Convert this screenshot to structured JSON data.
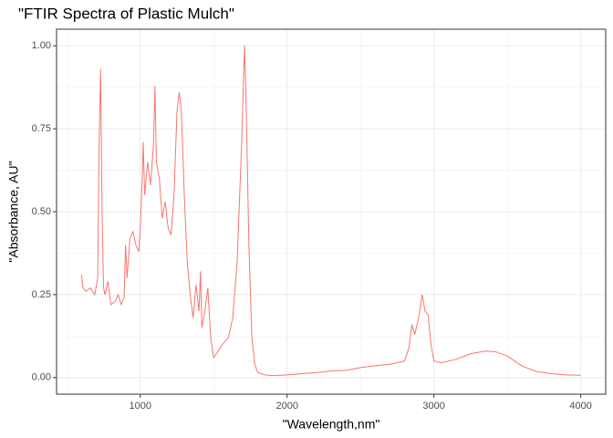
{
  "chart_data": {
    "type": "line",
    "title": "\"FTIR Spectra of Plastic Mulch\"",
    "x_label": "\"Wavelength,nm\"",
    "y_label": "\"Absorbance, AU\"",
    "xlim": [
      430,
      4170
    ],
    "ylim": [
      -0.05,
      1.05
    ],
    "xticks": [
      1000,
      2000,
      3000,
      4000
    ],
    "yticks": [
      {
        "value": 0,
        "label": "0.00"
      },
      {
        "value": 0.25,
        "label": "0.25"
      },
      {
        "value": 0.5,
        "label": "0.50"
      },
      {
        "value": 0.75,
        "label": "0.75"
      },
      {
        "value": 1,
        "label": "1.00"
      }
    ],
    "xminor": [
      500,
      1500,
      2500,
      3500
    ],
    "yminor": [
      0.125,
      0.375,
      0.625,
      0.875
    ],
    "grid": true,
    "series": [
      {
        "color": "#F8766D",
        "x": [
          600,
          610,
          630,
          660,
          690,
          710,
          720,
          730,
          740,
          750,
          760,
          780,
          800,
          830,
          850,
          870,
          890,
          900,
          910,
          930,
          950,
          970,
          990,
          1000,
          1015,
          1020,
          1030,
          1050,
          1070,
          1090,
          1100,
          1110,
          1130,
          1150,
          1170,
          1190,
          1210,
          1230,
          1250,
          1265,
          1280,
          1300,
          1320,
          1340,
          1360,
          1380,
          1400,
          1410,
          1420,
          1440,
          1460,
          1480,
          1500,
          1530,
          1560,
          1600,
          1630,
          1660,
          1690,
          1710,
          1720,
          1740,
          1760,
          1780,
          1800,
          1850,
          1900,
          2000,
          2100,
          2200,
          2300,
          2400,
          2500,
          2600,
          2700,
          2800,
          2830,
          2850,
          2870,
          2900,
          2920,
          2940,
          2960,
          2980,
          3000,
          3050,
          3150,
          3250,
          3350,
          3420,
          3500,
          3600,
          3700,
          3800,
          3900,
          4000
        ],
        "values": [
          0.31,
          0.27,
          0.26,
          0.27,
          0.25,
          0.3,
          0.7,
          0.93,
          0.5,
          0.27,
          0.25,
          0.29,
          0.22,
          0.23,
          0.25,
          0.22,
          0.24,
          0.4,
          0.3,
          0.42,
          0.44,
          0.4,
          0.38,
          0.45,
          0.62,
          0.71,
          0.55,
          0.65,
          0.58,
          0.7,
          0.88,
          0.65,
          0.6,
          0.48,
          0.53,
          0.45,
          0.43,
          0.55,
          0.8,
          0.86,
          0.8,
          0.55,
          0.35,
          0.25,
          0.18,
          0.28,
          0.2,
          0.32,
          0.15,
          0.2,
          0.27,
          0.12,
          0.06,
          0.08,
          0.1,
          0.12,
          0.18,
          0.35,
          0.7,
          1.0,
          0.85,
          0.4,
          0.12,
          0.04,
          0.015,
          0.008,
          0.006,
          0.008,
          0.012,
          0.015,
          0.02,
          0.022,
          0.03,
          0.036,
          0.04,
          0.05,
          0.09,
          0.16,
          0.13,
          0.19,
          0.25,
          0.2,
          0.19,
          0.1,
          0.05,
          0.045,
          0.055,
          0.072,
          0.08,
          0.078,
          0.065,
          0.035,
          0.018,
          0.012,
          0.008,
          0.007
        ]
      }
    ]
  }
}
